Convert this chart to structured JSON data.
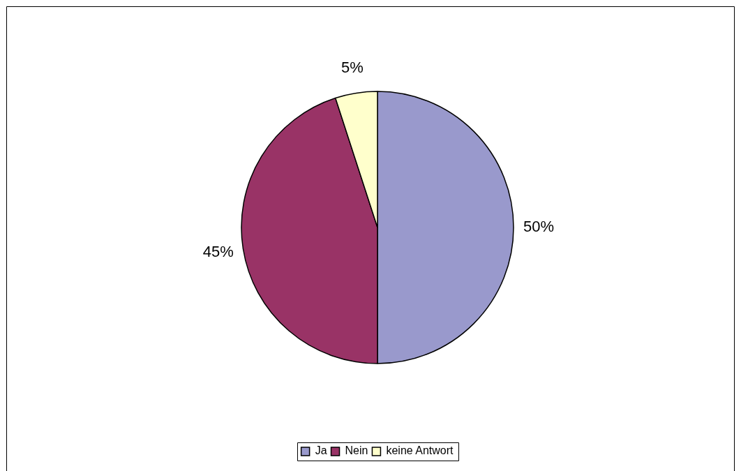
{
  "chart_data": {
    "type": "pie",
    "categories": [
      "Ja",
      "Nein",
      "keine Antwort"
    ],
    "values": [
      50,
      45,
      5
    ],
    "colors": [
      "#9999cc",
      "#993366",
      "#ffffcc"
    ],
    "value_labels": [
      "50%",
      "45%",
      "5%"
    ],
    "legend": "bottom"
  }
}
